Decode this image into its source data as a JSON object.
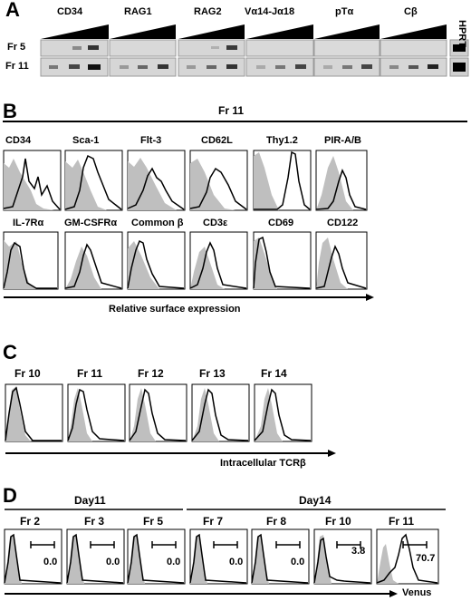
{
  "panel_a": {
    "letter": "A",
    "genes": [
      "CD34",
      "RAG1",
      "RAG2",
      "Vα14-Jα18",
      "pTα",
      "Cβ"
    ],
    "control": "HPRT",
    "rows": [
      "Fr 5",
      "Fr 11"
    ]
  },
  "panel_b": {
    "letter": "B",
    "title": "Fr 11",
    "row1": [
      "CD34",
      "Sca-1",
      "Flt-3",
      "CD62L",
      "Thy1.2",
      "PIR-A/B"
    ],
    "row2": [
      "IL-7Rα",
      "GM-CSFRα",
      "Common β",
      "CD3ε",
      "CD69",
      "CD122"
    ],
    "xaxis": "Relative surface expression"
  },
  "panel_c": {
    "letter": "C",
    "fractions": [
      "Fr 10",
      "Fr 11",
      "Fr 12",
      "Fr 13",
      "Fr 14"
    ],
    "xaxis": "Intracellular TCRβ"
  },
  "panel_d": {
    "letter": "D",
    "group1": "Day11",
    "group2": "Day14",
    "fractions": [
      "Fr 2",
      "Fr 3",
      "Fr 5",
      "Fr 7",
      "Fr 8",
      "Fr 10",
      "Fr 11"
    ],
    "values": [
      "0.0",
      "0.0",
      "0.0",
      "0.0",
      "0.0",
      "3.8",
      "70.7"
    ],
    "xaxis": "Venus"
  },
  "colors": {
    "filled_histogram": "#bfbfbf",
    "line": "#000000",
    "gel": "#d4d4d4"
  }
}
